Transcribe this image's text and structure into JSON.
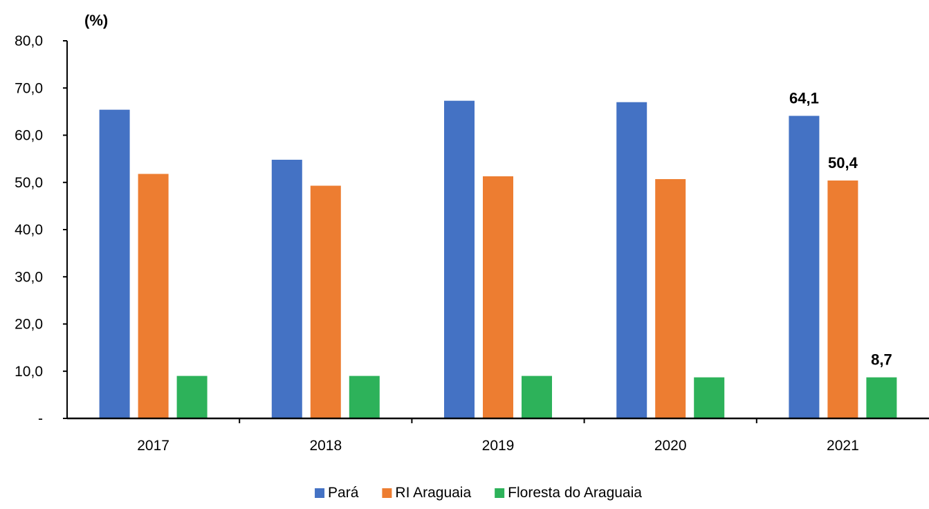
{
  "chart_data": {
    "type": "bar",
    "ylabel": "(%)",
    "categories": [
      "2017",
      "2018",
      "2019",
      "2020",
      "2021"
    ],
    "series": [
      {
        "name": "Pará",
        "color": "#4472C4",
        "values": [
          65.4,
          54.8,
          67.3,
          67.0,
          64.1
        ]
      },
      {
        "name": "RI Araguaia",
        "color": "#ED7D31",
        "values": [
          51.8,
          49.3,
          51.3,
          50.7,
          50.4
        ]
      },
      {
        "name": "Floresta do Araguaia",
        "color": "#2DB25A",
        "values": [
          9.0,
          9.0,
          9.0,
          8.7,
          8.7
        ]
      }
    ],
    "ylim": [
      0,
      80
    ],
    "yticks": [
      "-",
      "10,0",
      "20,0",
      "30,0",
      "40,0",
      "50,0",
      "60,0",
      "70,0",
      "80,0"
    ],
    "data_labels": [
      {
        "series": 0,
        "category": 4,
        "text": "64,1"
      },
      {
        "series": 1,
        "category": 4,
        "text": "50,4"
      },
      {
        "series": 2,
        "category": 4,
        "text": "8,7"
      }
    ],
    "legend_position": "bottom",
    "grid": false
  }
}
